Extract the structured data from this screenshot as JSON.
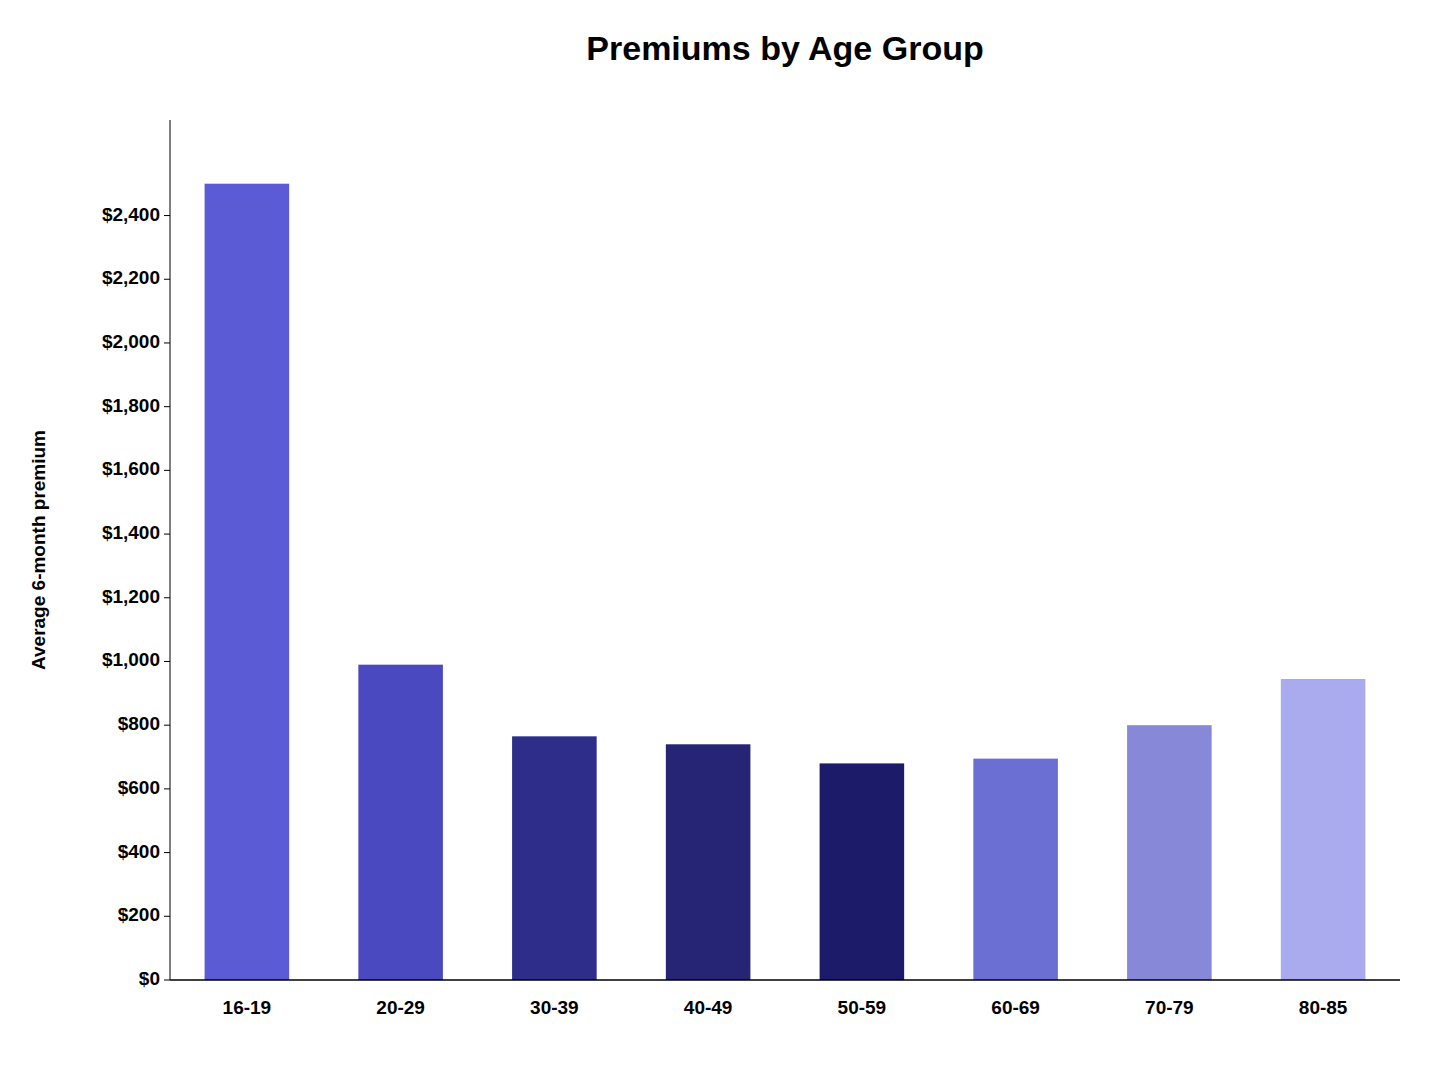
{
  "chart_data": {
    "type": "bar",
    "title": "Premiums by Age Group",
    "ylabel": "Average 6-month premium",
    "categories": [
      "16-19",
      "20-29",
      "30-39",
      "40-49",
      "50-59",
      "60-69",
      "70-79",
      "80-85"
    ],
    "values": [
      2500,
      990,
      765,
      740,
      680,
      695,
      800,
      945
    ],
    "colors": [
      "#5B5BD6",
      "#4A49C0",
      "#2E2D8A",
      "#252475",
      "#1C1B6A",
      "#6B6FD4",
      "#8888D8",
      "#AAAAEE"
    ],
    "ylim": [
      0,
      2700
    ],
    "yticks": [
      {
        "value": 0,
        "label": "$0"
      },
      {
        "value": 200,
        "label": "$200"
      },
      {
        "value": 400,
        "label": "$400"
      },
      {
        "value": 600,
        "label": "$600"
      },
      {
        "value": 800,
        "label": "$800"
      },
      {
        "value": 1000,
        "label": "$1,000"
      },
      {
        "value": 1200,
        "label": "$1,200"
      },
      {
        "value": 1400,
        "label": "$1,400"
      },
      {
        "value": 1600,
        "label": "$1,600"
      },
      {
        "value": 1800,
        "label": "$1,800"
      },
      {
        "value": 2000,
        "label": "$2,000"
      },
      {
        "value": 2200,
        "label": "$2,200"
      },
      {
        "value": 2400,
        "label": "$2,400"
      }
    ],
    "grid": false
  }
}
